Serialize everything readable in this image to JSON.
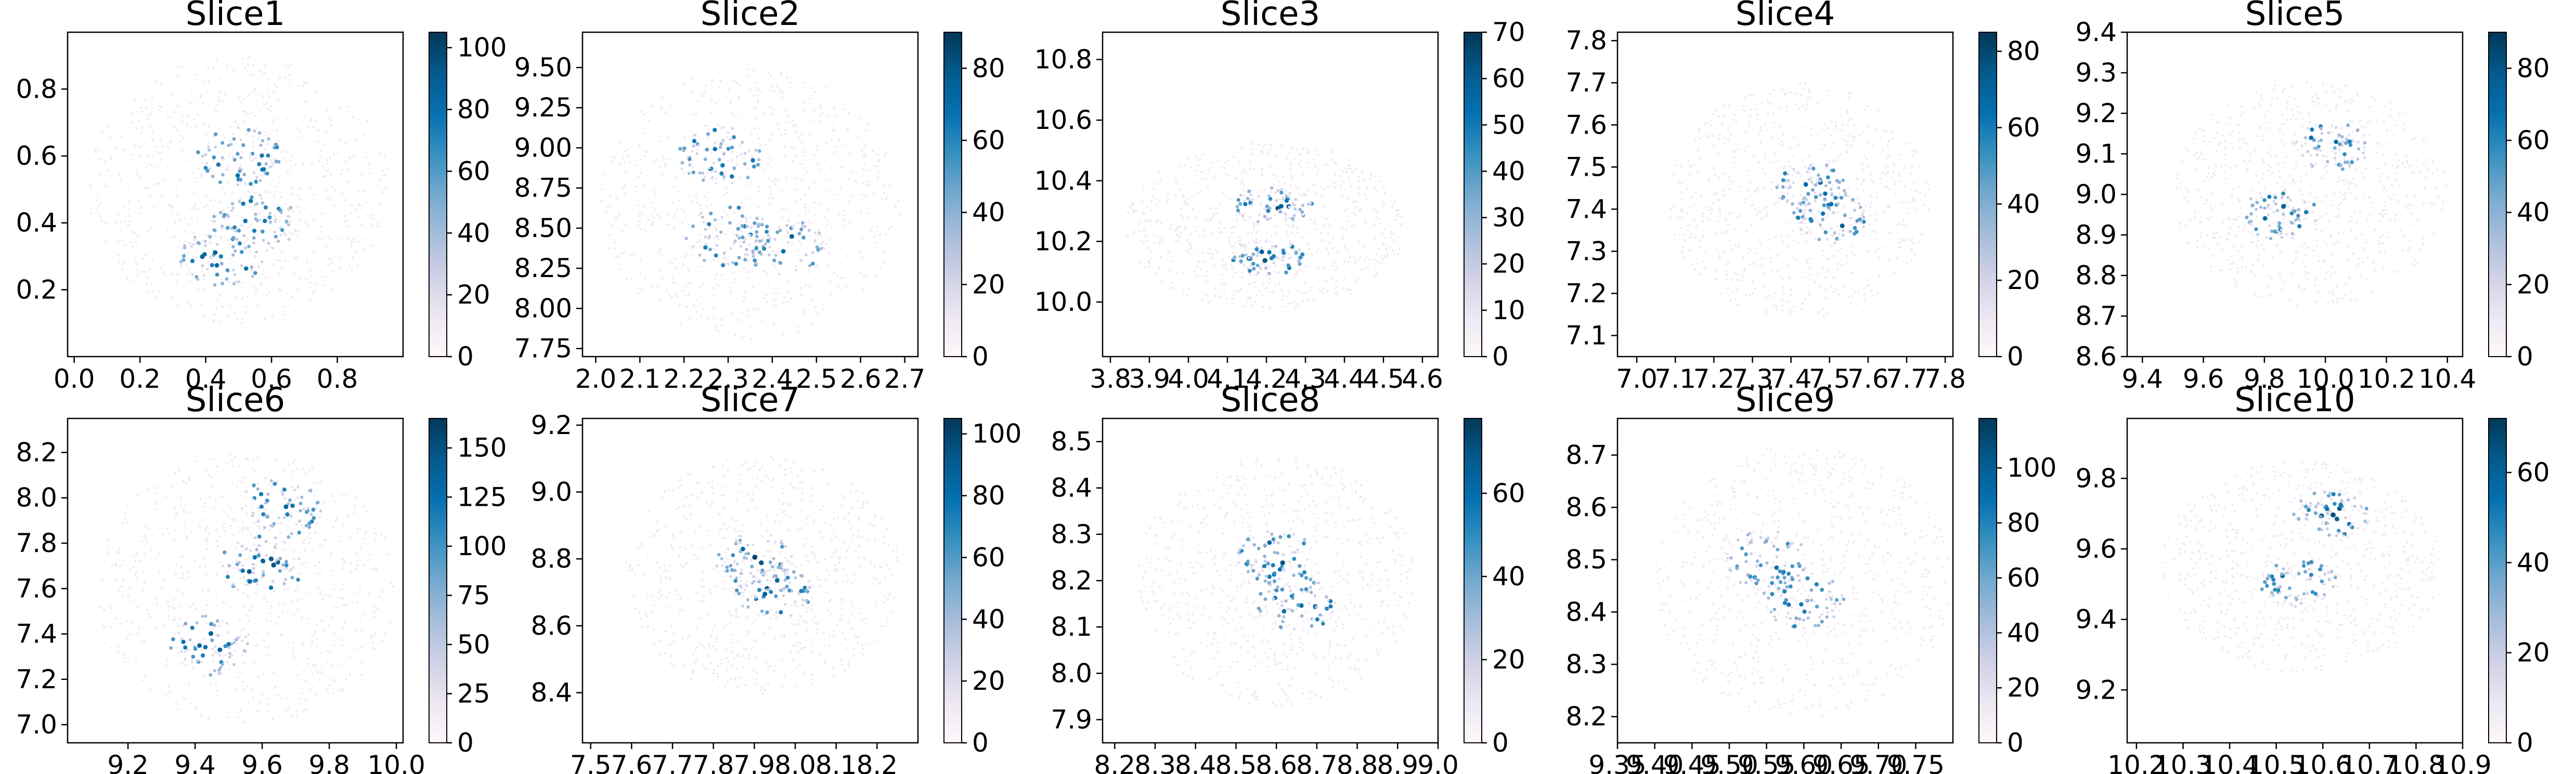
{
  "colors": {
    "colormap": "PuBu",
    "cmap_stops": [
      "#fff7fb",
      "#ece7f2",
      "#d0d1e6",
      "#a6bddb",
      "#74a9cf",
      "#3690c0",
      "#0570b0",
      "#045a8d",
      "#023858"
    ],
    "background_dot": "#f3e9f1"
  },
  "chart_data": [
    {
      "type": "scatter",
      "title": "Slice1",
      "xlabel": "",
      "ylabel": "",
      "xlim": [
        -0.02,
        1.0
      ],
      "ylim": [
        0.0,
        0.97
      ],
      "xticks": [
        0.0,
        0.2,
        0.4,
        0.6,
        0.8
      ],
      "xtick_labels": [
        "0.0",
        "0.2",
        "0.4",
        "0.6",
        "0.8"
      ],
      "yticks": [
        0.2,
        0.4,
        0.6,
        0.8
      ],
      "ytick_labels": [
        "0.2",
        "0.4",
        "0.6",
        "0.8"
      ],
      "colorbar": {
        "min": 0,
        "max": 105,
        "ticks": [
          0,
          20,
          40,
          60,
          80,
          100
        ],
        "tick_labels": [
          "0",
          "20",
          "40",
          "60",
          "80",
          "100"
        ]
      },
      "tissue_center": [
        0.5,
        0.5
      ],
      "tissue_radius": [
        0.46,
        0.4
      ],
      "hotspots": [
        [
          0.5,
          0.6
        ],
        [
          0.55,
          0.4
        ],
        [
          0.45,
          0.3
        ]
      ],
      "grid": false,
      "legend": "none"
    },
    {
      "type": "scatter",
      "title": "Slice2",
      "xlabel": "",
      "ylabel": "",
      "xlim": [
        1.97,
        2.73
      ],
      "ylim": [
        7.7,
        9.72
      ],
      "xticks": [
        2.0,
        2.1,
        2.2,
        2.3,
        2.4,
        2.5,
        2.6,
        2.7
      ],
      "xtick_labels": [
        "2.0",
        "2.1",
        "2.2",
        "2.3",
        "2.4",
        "2.5",
        "2.6",
        "2.7"
      ],
      "yticks": [
        7.75,
        8.0,
        8.25,
        8.5,
        8.75,
        9.0,
        9.25,
        9.5
      ],
      "ytick_labels": [
        "7.75",
        "8.00",
        "8.25",
        "8.50",
        "8.75",
        "9.00",
        "9.25",
        "9.50"
      ],
      "colorbar": {
        "min": 0,
        "max": 90,
        "ticks": [
          0,
          20,
          40,
          60,
          80
        ],
        "tick_labels": [
          "0",
          "20",
          "40",
          "60",
          "80"
        ]
      },
      "tissue_center": [
        2.35,
        8.65
      ],
      "tissue_radius": [
        0.34,
        0.85
      ],
      "hotspots": [
        [
          2.28,
          8.95
        ],
        [
          2.3,
          8.45
        ],
        [
          2.42,
          8.4
        ]
      ],
      "grid": false,
      "legend": "none"
    },
    {
      "type": "scatter",
      "title": "Slice3",
      "xlabel": "",
      "ylabel": "",
      "xlim": [
        3.78,
        4.64
      ],
      "ylim": [
        9.82,
        10.89
      ],
      "xticks": [
        3.8,
        3.9,
        4.0,
        4.1,
        4.2,
        4.3,
        4.4,
        4.5,
        4.6
      ],
      "xtick_labels": [
        "3.8",
        "3.9",
        "4.0",
        "4.1",
        "4.2",
        "4.3",
        "4.4",
        "4.5",
        "4.6"
      ],
      "yticks": [
        10.0,
        10.2,
        10.4,
        10.6,
        10.8
      ],
      "ytick_labels": [
        "10.0",
        "10.2",
        "10.4",
        "10.6",
        "10.8"
      ],
      "colorbar": {
        "min": 0,
        "max": 70,
        "ticks": [
          0,
          10,
          20,
          30,
          40,
          50,
          60,
          70
        ],
        "tick_labels": [
          "0",
          "10",
          "20",
          "30",
          "40",
          "50",
          "60",
          "70"
        ]
      },
      "tissue_center": [
        4.2,
        10.25
      ],
      "tissue_radius": [
        0.36,
        0.28
      ],
      "hotspots": [
        [
          4.22,
          10.32
        ],
        [
          4.2,
          10.15
        ]
      ],
      "grid": false,
      "legend": "none"
    },
    {
      "type": "scatter",
      "title": "Slice4",
      "xlabel": "",
      "ylabel": "",
      "xlim": [
        6.95,
        7.82
      ],
      "ylim": [
        7.05,
        7.82
      ],
      "xticks": [
        7.0,
        7.1,
        7.2,
        7.3,
        7.4,
        7.5,
        7.6,
        7.7,
        7.8
      ],
      "xtick_labels": [
        "7.0",
        "7.1",
        "7.2",
        "7.3",
        "7.4",
        "7.5",
        "7.6",
        "7.7",
        "7.8"
      ],
      "yticks": [
        7.1,
        7.2,
        7.3,
        7.4,
        7.5,
        7.6,
        7.7,
        7.8
      ],
      "ytick_labels": [
        "7.1",
        "7.2",
        "7.3",
        "7.4",
        "7.5",
        "7.6",
        "7.7",
        "7.8"
      ],
      "colorbar": {
        "min": 0,
        "max": 85,
        "ticks": [
          0,
          20,
          40,
          60,
          80
        ],
        "tick_labels": [
          "0",
          "20",
          "40",
          "60",
          "80"
        ]
      },
      "tissue_center": [
        7.42,
        7.42
      ],
      "tissue_radius": [
        0.34,
        0.28
      ],
      "hotspots": [
        [
          7.45,
          7.45
        ],
        [
          7.5,
          7.38
        ]
      ],
      "grid": false,
      "legend": "none"
    },
    {
      "type": "scatter",
      "title": "Slice5",
      "xlabel": "",
      "ylabel": "",
      "xlim": [
        9.35,
        10.45
      ],
      "ylim": [
        8.6,
        9.4
      ],
      "xticks": [
        9.4,
        9.6,
        9.8,
        10.0,
        10.2,
        10.4
      ],
      "xtick_labels": [
        "9.4",
        "9.6",
        "9.8",
        "10.0",
        "10.2",
        "10.4"
      ],
      "yticks": [
        8.6,
        8.7,
        8.8,
        8.9,
        9.0,
        9.1,
        9.2,
        9.3,
        9.4
      ],
      "ytick_labels": [
        "8.6",
        "8.7",
        "8.8",
        "8.9",
        "9.0",
        "9.1",
        "9.2",
        "9.3",
        "9.4"
      ],
      "colorbar": {
        "min": 0,
        "max": 90,
        "ticks": [
          0,
          20,
          40,
          60,
          80
        ],
        "tick_labels": [
          "0",
          "20",
          "40",
          "60",
          "80"
        ]
      },
      "tissue_center": [
        9.95,
        9.0
      ],
      "tissue_radius": [
        0.45,
        0.28
      ],
      "hotspots": [
        [
          10.02,
          9.12
        ],
        [
          9.85,
          8.95
        ]
      ],
      "grid": false,
      "legend": "none"
    },
    {
      "type": "scatter",
      "title": "Slice6",
      "xlabel": "",
      "ylabel": "",
      "xlim": [
        9.02,
        10.02
      ],
      "ylim": [
        6.92,
        8.35
      ],
      "xticks": [
        9.2,
        9.4,
        9.6,
        9.8,
        10.0
      ],
      "xtick_labels": [
        "9.2",
        "9.4",
        "9.6",
        "9.8",
        "10.0"
      ],
      "yticks": [
        7.0,
        7.2,
        7.4,
        7.6,
        7.8,
        8.0,
        8.2
      ],
      "ytick_labels": [
        "7.0",
        "7.2",
        "7.4",
        "7.6",
        "7.8",
        "8.0",
        "8.2"
      ],
      "colorbar": {
        "min": 0,
        "max": 165,
        "ticks": [
          0,
          25,
          50,
          75,
          100,
          125,
          150
        ],
        "tick_labels": [
          "0",
          "25",
          "50",
          "75",
          "100",
          "125",
          "150"
        ]
      },
      "tissue_center": [
        9.55,
        7.6
      ],
      "tissue_radius": [
        0.45,
        0.6
      ],
      "hotspots": [
        [
          9.65,
          7.95
        ],
        [
          9.6,
          7.7
        ],
        [
          9.45,
          7.35
        ]
      ],
      "grid": false,
      "legend": "none"
    },
    {
      "type": "scatter",
      "title": "Slice7",
      "xlabel": "",
      "ylabel": "",
      "xlim": [
        7.48,
        8.3
      ],
      "ylim": [
        8.25,
        9.22
      ],
      "xticks": [
        7.5,
        7.6,
        7.7,
        7.8,
        7.9,
        8.0,
        8.1,
        8.2
      ],
      "xtick_labels": [
        "7.5",
        "7.6",
        "7.7",
        "7.8",
        "7.9",
        "8.0",
        "8.1",
        "8.2"
      ],
      "yticks": [
        8.4,
        8.6,
        8.8,
        9.0,
        9.2
      ],
      "ytick_labels": [
        "8.4",
        "8.6",
        "8.8",
        "9.0",
        "9.2"
      ],
      "colorbar": {
        "min": 0,
        "max": 105,
        "ticks": [
          0,
          20,
          40,
          60,
          80,
          100
        ],
        "tick_labels": [
          "0",
          "20",
          "40",
          "60",
          "80",
          "100"
        ]
      },
      "tissue_center": [
        7.92,
        8.75
      ],
      "tissue_radius": [
        0.34,
        0.36
      ],
      "hotspots": [
        [
          7.9,
          8.8
        ],
        [
          7.95,
          8.7
        ]
      ],
      "grid": false,
      "legend": "none"
    },
    {
      "type": "scatter",
      "title": "Slice8",
      "xlabel": "",
      "ylabel": "",
      "xlim": [
        8.17,
        9.0
      ],
      "ylim": [
        7.85,
        8.55
      ],
      "xticks": [
        8.2,
        8.3,
        8.4,
        8.5,
        8.6,
        8.7,
        8.8,
        8.9,
        9.0
      ],
      "xtick_labels": [
        "8.2",
        "8.3",
        "8.4",
        "8.5",
        "8.6",
        "8.7",
        "8.8",
        "8.9",
        "9.0"
      ],
      "yticks": [
        7.9,
        8.0,
        8.1,
        8.2,
        8.3,
        8.4,
        8.5
      ],
      "ytick_labels": [
        "7.9",
        "8.0",
        "8.1",
        "8.2",
        "8.3",
        "8.4",
        "8.5"
      ],
      "colorbar": {
        "min": 0,
        "max": 78,
        "ticks": [
          0,
          20,
          40,
          60
        ],
        "tick_labels": [
          "0",
          "20",
          "40",
          "60"
        ]
      },
      "tissue_center": [
        8.6,
        8.2
      ],
      "tissue_radius": [
        0.35,
        0.27
      ],
      "hotspots": [
        [
          8.6,
          8.25
        ],
        [
          8.65,
          8.15
        ]
      ],
      "grid": false,
      "legend": "none"
    },
    {
      "type": "scatter",
      "title": "Slice9",
      "xlabel": "",
      "ylabel": "",
      "xlim": [
        9.35,
        9.8
      ],
      "ylim": [
        8.15,
        8.77
      ],
      "xticks": [
        9.35,
        9.4,
        9.45,
        9.5,
        9.55,
        9.6,
        9.65,
        9.7,
        9.75
      ],
      "xtick_labels": [
        "9.35",
        "9.40",
        "9.45",
        "9.50",
        "9.55",
        "9.60",
        "9.65",
        "9.70",
        "9.75"
      ],
      "yticks": [
        8.2,
        8.3,
        8.4,
        8.5,
        8.6,
        8.7
      ],
      "ytick_labels": [
        "8.2",
        "8.3",
        "8.4",
        "8.5",
        "8.6",
        "8.7"
      ],
      "colorbar": {
        "min": 0,
        "max": 118,
        "ticks": [
          0,
          20,
          40,
          60,
          80,
          100
        ],
        "tick_labels": [
          "0",
          "20",
          "40",
          "60",
          "80",
          "100"
        ]
      },
      "tissue_center": [
        9.6,
        8.46
      ],
      "tissue_radius": [
        0.2,
        0.26
      ],
      "hotspots": [
        [
          9.6,
          8.42
        ],
        [
          9.55,
          8.5
        ]
      ],
      "grid": false,
      "legend": "none"
    },
    {
      "type": "scatter",
      "title": "Slice10",
      "xlabel": "",
      "ylabel": "",
      "xlim": [
        10.18,
        10.9
      ],
      "ylim": [
        9.05,
        9.97
      ],
      "xticks": [
        10.2,
        10.3,
        10.4,
        10.5,
        10.6,
        10.7,
        10.8,
        10.9
      ],
      "xtick_labels": [
        "10.2",
        "10.3",
        "10.4",
        "10.5",
        "10.6",
        "10.7",
        "10.8",
        "10.9"
      ],
      "yticks": [
        9.2,
        9.4,
        9.6,
        9.8
      ],
      "ytick_labels": [
        "9.2",
        "9.4",
        "9.6",
        "9.8"
      ],
      "colorbar": {
        "min": 0,
        "max": 72,
        "ticks": [
          0,
          20,
          40,
          60
        ],
        "tick_labels": [
          "0",
          "20",
          "40",
          "60"
        ]
      },
      "tissue_center": [
        10.55,
        9.55
      ],
      "tissue_radius": [
        0.3,
        0.3
      ],
      "hotspots": [
        [
          10.55,
          9.5
        ],
        [
          10.62,
          9.7
        ]
      ],
      "grid": false,
      "legend": "none"
    }
  ]
}
